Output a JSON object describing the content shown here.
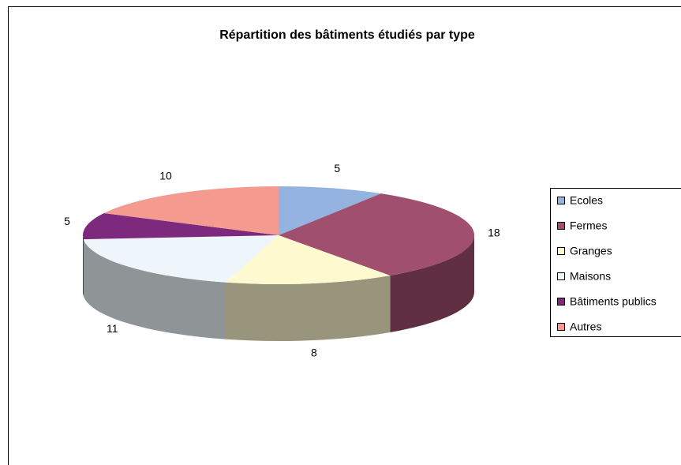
{
  "chart_data": {
    "type": "pie3d",
    "title": "Répartition des bâtiments étudiés par type",
    "categories": [
      "Ecoles",
      "Fermes",
      "Granges",
      "Maisons",
      "Bâtiments publics",
      "Autres"
    ],
    "values": [
      5,
      18,
      8,
      11,
      5,
      10
    ],
    "colors": [
      "#95b3e0",
      "#a0506e",
      "#fff9d0",
      "#eef6fc",
      "#7d2a7e",
      "#f59a8f"
    ],
    "legend": "right"
  }
}
